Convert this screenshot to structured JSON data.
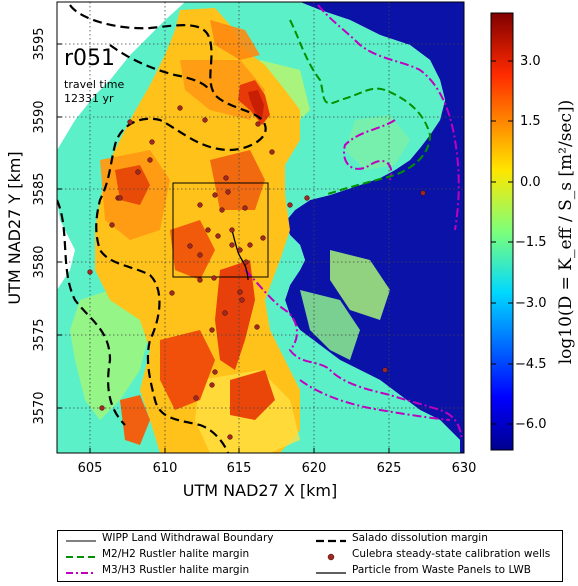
{
  "map": {
    "run_id": "r051",
    "travel_time_label": "travel time",
    "travel_time_value": "12331 yr",
    "x_label": "UTM NAD27 X [km]",
    "y_label": "UTM NAD27 Y [km]",
    "x_ticks": [
      "605",
      "610",
      "615",
      "620",
      "625",
      "630"
    ],
    "y_ticks": [
      "3570",
      "3575",
      "3580",
      "3585",
      "3590",
      "3595"
    ],
    "x_range": [
      601.5,
      630
    ],
    "y_range": [
      3566.5,
      3597.5
    ],
    "background_right": "#0b12a8"
  },
  "colorbar": {
    "ticks": [
      "3.0",
      "1.5",
      "0.0",
      "−1.5",
      "−3.0",
      "−4.5",
      "−6.0"
    ],
    "label": "log10(D = K_eff / S_s [m²/sec])",
    "range": [
      -6.8,
      4.0
    ]
  },
  "legend": {
    "items": [
      {
        "label": "WIPP Land Withdrawal Boundary",
        "style": "thin-solid",
        "color": "#000000"
      },
      {
        "label": "Salado dissolution margin",
        "style": "dashed",
        "color": "#000000"
      },
      {
        "label": "M2/H2 Rustler halite margin",
        "style": "dashed",
        "color": "#008000"
      },
      {
        "label": "Culebra steady-state calibration wells",
        "style": "dot",
        "color": "#8b1a1a"
      },
      {
        "label": "M3/H3 Rustler halite margin",
        "style": "dash-dot",
        "color": "#bf00bf"
      },
      {
        "label": "Particle from Waste Panels to LWB",
        "style": "solid",
        "color": "#000000"
      }
    ]
  }
}
